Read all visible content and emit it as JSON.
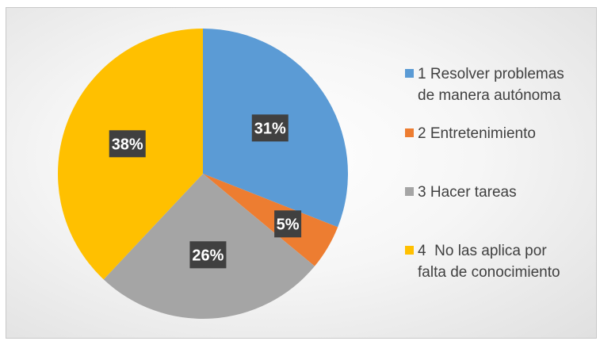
{
  "chart_data": {
    "type": "pie",
    "title": "",
    "categories": [
      "1 Resolver problemas\nde manera autónoma",
      "2 Entretenimiento",
      "3 Hacer tareas",
      "4  No las aplica por\nfalta de conocimiento"
    ],
    "values": [
      31,
      5,
      26,
      38
    ],
    "value_labels": [
      "31%",
      "5%",
      "26%",
      "38%"
    ],
    "colors": [
      "#5B9BD5",
      "#ED7D31",
      "#A5A5A5",
      "#FFC000"
    ],
    "legend_position": "right",
    "label_background": "#404040"
  }
}
